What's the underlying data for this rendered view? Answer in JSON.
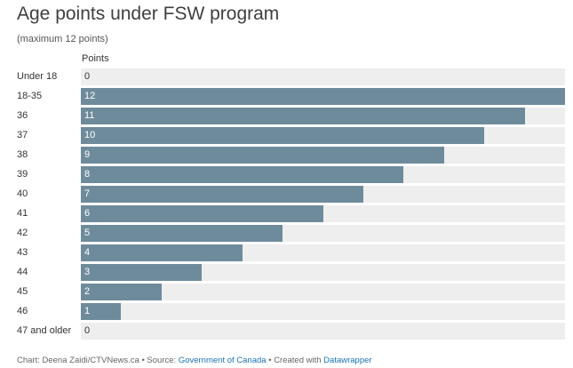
{
  "title": "Age points under FSW program",
  "subtitle": "(maximum 12 points)",
  "column_header": "Points",
  "colors": {
    "bar": "#6e8b9c",
    "track": "#eeeeee",
    "value_on_bar": "#ffffff",
    "value_off_bar": "#333333",
    "link": "#1a73b5"
  },
  "footer": {
    "chart_credit": "Chart: Deena Zaidi/CTVNews.ca",
    "sep1": " • ",
    "source_prefix": "Source: ",
    "source_link": "Government of Canada",
    "sep2": " • ",
    "created_prefix": "Created with ",
    "created_link": "Datawrapper"
  },
  "chart_data": {
    "type": "bar",
    "orientation": "horizontal",
    "title": "Age points under FSW program",
    "subtitle": "(maximum 12 points)",
    "xlabel": "Points",
    "ylabel": "",
    "xlim": [
      0,
      12
    ],
    "categories": [
      "Under 18",
      "18-35",
      "36",
      "37",
      "38",
      "39",
      "40",
      "41",
      "42",
      "43",
      "44",
      "45",
      "46",
      "47 and older"
    ],
    "values": [
      0,
      12,
      11,
      10,
      9,
      8,
      7,
      6,
      5,
      4,
      3,
      2,
      1,
      0
    ],
    "data_labels": true,
    "legend": "none",
    "grid": false
  }
}
